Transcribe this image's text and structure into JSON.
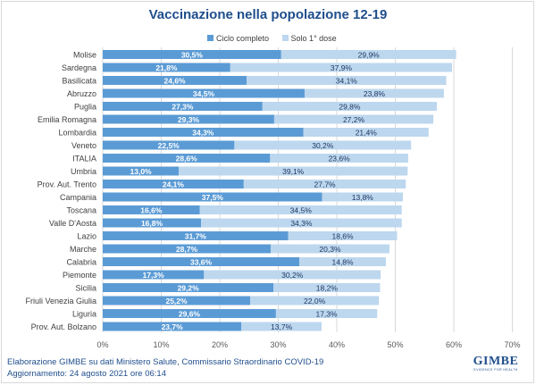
{
  "chart_data": {
    "type": "bar",
    "orientation": "horizontal",
    "stacked": true,
    "title": "Vaccinazione nella popolazione 12-19",
    "categories": [
      "Molise",
      "Sardegna",
      "Basilicata",
      "Abruzzo",
      "Puglia",
      "Emilia Romagna",
      "Lombardia",
      "Veneto",
      "ITALIA",
      "Umbria",
      "Prov. Aut. Trento",
      "Campania",
      "Toscana",
      "Valle D'Aosta",
      "Lazio",
      "Marche",
      "Calabria",
      "Piemonte",
      "Sicilia",
      "Friuli Venezia Giulia",
      "Liguria",
      "Prov. Aut. Bolzano"
    ],
    "series": [
      {
        "name": "Ciclo completo",
        "color": "#5b9bd5",
        "values": [
          30.5,
          21.8,
          24.6,
          34.5,
          27.3,
          29.3,
          34.3,
          22.5,
          28.6,
          13.0,
          24.1,
          37.5,
          16.6,
          16.8,
          31.7,
          28.7,
          33.6,
          17.3,
          29.2,
          25.2,
          29.6,
          23.7
        ],
        "labels": [
          "30,5%",
          "21,8%",
          "24,6%",
          "34,5%",
          "27,3%",
          "29,3%",
          "34,3%",
          "22,5%",
          "28,6%",
          "13,0%",
          "24,1%",
          "37,5%",
          "16,6%",
          "16,8%",
          "31,7%",
          "28,7%",
          "33,6%",
          "17,3%",
          "29,2%",
          "25,2%",
          "29,6%",
          "23,7%"
        ]
      },
      {
        "name": "Solo 1° dose",
        "color": "#bdd7ee",
        "values": [
          29.9,
          37.9,
          34.1,
          23.8,
          29.8,
          27.2,
          21.4,
          30.2,
          23.6,
          39.1,
          27.7,
          13.8,
          34.5,
          34.3,
          18.6,
          20.3,
          14.8,
          30.2,
          18.2,
          22.0,
          17.3,
          13.7
        ],
        "labels": [
          "29,9%",
          "37,9%",
          "34,1%",
          "23,8%",
          "29,8%",
          "27,2%",
          "21,4%",
          "30,2%",
          "23,6%",
          "39,1%",
          "27,7%",
          "13,8%",
          "34,5%",
          "34,3%",
          "18,6%",
          "20,3%",
          "14,8%",
          "30,2%",
          "18,2%",
          "22,0%",
          "17,3%",
          "13,7%"
        ]
      }
    ],
    "xlim": [
      0,
      70
    ],
    "xticks": [
      "0%",
      "10%",
      "20%",
      "30%",
      "40%",
      "50%",
      "60%",
      "70%"
    ],
    "grid": true,
    "legend_position": "top"
  },
  "footer": {
    "line1": "Elaborazione GIMBE su dati Ministero Salute, Commissario Straordinario COVID-19",
    "line2": "Aggiornamento: 24 agosto 2021  ore 06:14"
  },
  "logo": {
    "brand": "GIMBE",
    "tagline": "EVIDENCE FOR HEALTH"
  }
}
